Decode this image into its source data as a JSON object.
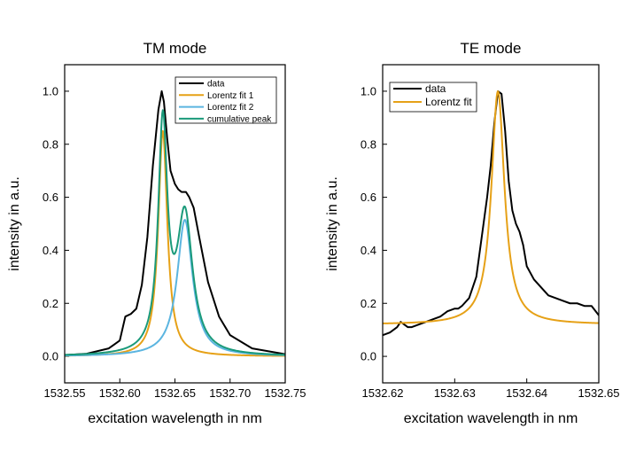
{
  "chart_data": [
    {
      "type": "line",
      "title": "TM mode",
      "xlabel": "excitation wavelength in nm",
      "ylabel": "intensity in a.u.",
      "xlim": [
        1532.55,
        1532.75
      ],
      "ylim": [
        -0.1,
        1.1
      ],
      "xticks": [
        1532.55,
        1532.6,
        1532.65,
        1532.7,
        1532.75
      ],
      "xtick_labels": [
        "1532.55",
        "1532.60",
        "1532.65",
        "1532.70",
        "1532.75"
      ],
      "yticks": [
        0.0,
        0.2,
        0.4,
        0.6,
        0.8,
        1.0
      ],
      "ytick_labels": [
        "0.0",
        "0.2",
        "0.4",
        "0.6",
        "0.8",
        "1.0"
      ],
      "legend_position": "top-right",
      "series": [
        {
          "name": "data",
          "color": "#000000",
          "x": [
            1532.55,
            1532.57,
            1532.59,
            1532.6,
            1532.605,
            1532.61,
            1532.615,
            1532.62,
            1532.625,
            1532.63,
            1532.635,
            1532.638,
            1532.64,
            1532.643,
            1532.646,
            1532.65,
            1532.653,
            1532.656,
            1532.66,
            1532.663,
            1532.667,
            1532.672,
            1532.68,
            1532.69,
            1532.7,
            1532.72,
            1532.75
          ],
          "y": [
            0.005,
            0.01,
            0.03,
            0.06,
            0.15,
            0.16,
            0.18,
            0.27,
            0.45,
            0.72,
            0.93,
            1.0,
            0.96,
            0.82,
            0.7,
            0.65,
            0.63,
            0.62,
            0.62,
            0.6,
            0.56,
            0.45,
            0.28,
            0.15,
            0.08,
            0.03,
            0.008
          ]
        },
        {
          "name": "Lorentz fit 1",
          "color": "#e6a117",
          "x0": 1532.639,
          "amplitude": 0.85,
          "hwhm": 0.005
        },
        {
          "name": "Lorentz fit 2",
          "color": "#5bb5e0",
          "x0": 1532.659,
          "amplitude": 0.515,
          "hwhm": 0.0085
        },
        {
          "name": "cumulative peak",
          "color": "#1a9a7a",
          "sum_of": [
            "Lorentz fit 1",
            "Lorentz fit 2"
          ]
        }
      ]
    },
    {
      "type": "line",
      "title": "TE mode",
      "xlabel": "excitation wavelength in nm",
      "ylabel": "intensity in a.u.",
      "xlim": [
        1532.62,
        1532.65
      ],
      "ylim": [
        -0.1,
        1.1
      ],
      "xticks": [
        1532.62,
        1532.63,
        1532.64,
        1532.65
      ],
      "xtick_labels": [
        "1532.62",
        "1532.63",
        "1532.64",
        "1532.65"
      ],
      "yticks": [
        0.0,
        0.2,
        0.4,
        0.6,
        0.8,
        1.0
      ],
      "ytick_labels": [
        "0.0",
        "0.2",
        "0.4",
        "0.6",
        "0.8",
        "1.0"
      ],
      "legend_position": "top-left",
      "series": [
        {
          "name": "data",
          "color": "#000000",
          "x": [
            1532.62,
            1532.621,
            1532.622,
            1532.6225,
            1532.623,
            1532.6235,
            1532.624,
            1532.625,
            1532.626,
            1532.627,
            1532.628,
            1532.629,
            1532.63,
            1532.6305,
            1532.631,
            1532.632,
            1532.633,
            1532.634,
            1532.6345,
            1532.635,
            1532.6355,
            1532.636,
            1532.6365,
            1532.637,
            1532.6375,
            1532.638,
            1532.6385,
            1532.639,
            1532.6395,
            1532.64,
            1532.641,
            1532.642,
            1532.643,
            1532.644,
            1532.645,
            1532.646,
            1532.647,
            1532.648,
            1532.649,
            1532.65
          ],
          "y": [
            0.08,
            0.09,
            0.11,
            0.13,
            0.12,
            0.11,
            0.11,
            0.12,
            0.13,
            0.14,
            0.15,
            0.17,
            0.18,
            0.18,
            0.19,
            0.22,
            0.3,
            0.5,
            0.6,
            0.72,
            0.88,
            1.0,
            0.99,
            0.85,
            0.66,
            0.55,
            0.5,
            0.47,
            0.42,
            0.34,
            0.29,
            0.26,
            0.23,
            0.22,
            0.21,
            0.2,
            0.2,
            0.19,
            0.19,
            0.155
          ]
        },
        {
          "name": "Lorentz fit",
          "color": "#e6a117",
          "x0": 1532.636,
          "amplitude": 0.88,
          "hwhm": 0.0011,
          "offset": 0.12
        }
      ]
    }
  ]
}
